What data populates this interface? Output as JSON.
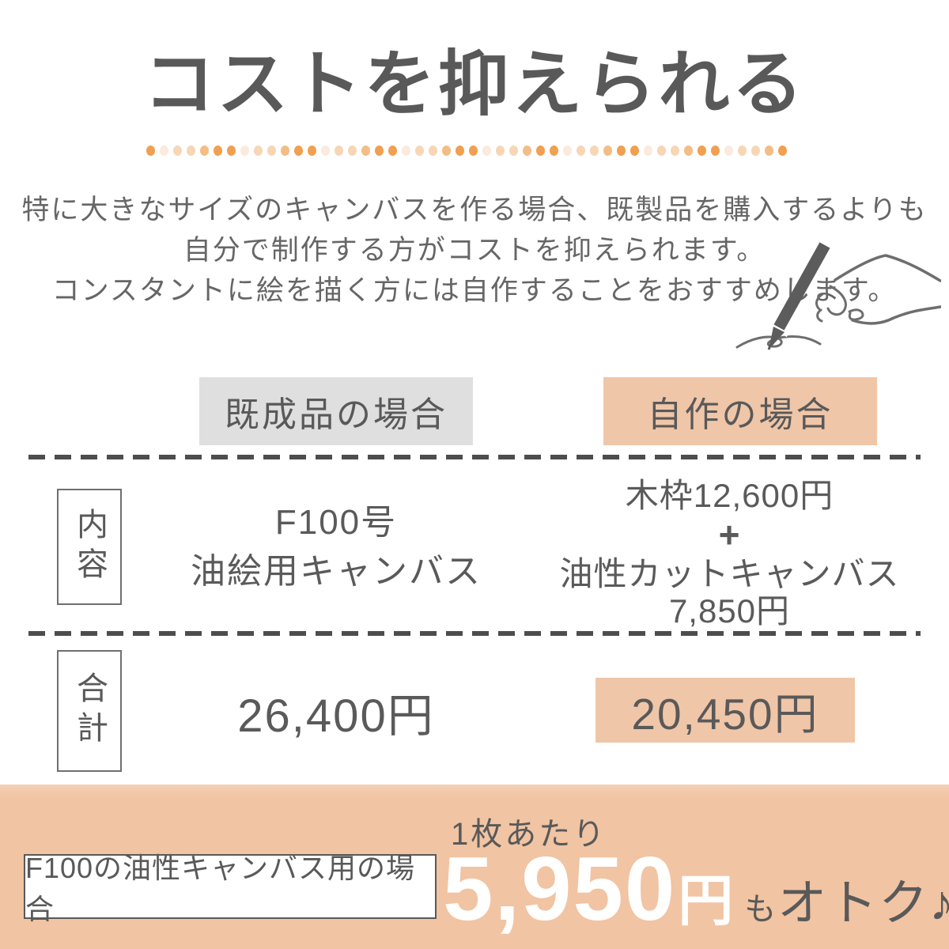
{
  "title": "コストを抑えられる",
  "intro": {
    "line1": "特に大きなサイズのキャンバスを作る場合、既製品を購入するよりも",
    "line2": "自分で制作する方がコストを抑えられます。",
    "line3": "コンスタントに絵を描く方には自作することをおすすめします。"
  },
  "decor": {
    "dot_colors": [
      "#f0a050",
      "#f3bd85",
      "#f7d6b6",
      "#fbeadd"
    ],
    "dot_count": 48
  },
  "colors": {
    "accent_peach": "#f0c6a8",
    "banner_peach": "#f1c4a3",
    "header_gray": "#dfdfdf",
    "text_dark": "#595959"
  },
  "table": {
    "columns": [
      {
        "label": "既成品の場合"
      },
      {
        "label": "自作の場合"
      }
    ],
    "rows": [
      {
        "header": "内容",
        "ready_made": {
          "line1": "F100号",
          "line2": "油絵用キャンバス"
        },
        "self_made": {
          "item1": "木枠12,600円",
          "plus": "+",
          "item2": "油性カットキャンバス",
          "item2_price": "7,850円"
        }
      },
      {
        "header": "合計",
        "ready_made_total": "26,400円",
        "self_made_total": "20,450円"
      }
    ]
  },
  "banner": {
    "case_label": "F100の油性キャンバス用の場合",
    "per_unit": "1枚あたり",
    "amount": "5,950",
    "unit": "円",
    "suffix_small": "も",
    "suffix": "オトク♪"
  }
}
